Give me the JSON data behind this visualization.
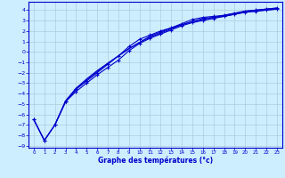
{
  "xlabel": "Graphe des températures (°c)",
  "bg_color": "#cceeff",
  "line_color": "#0000cc",
  "grid_color": "#aaccdd",
  "xlim": [
    -0.5,
    23.5
  ],
  "ylim": [
    -9.2,
    4.8
  ],
  "xticks": [
    0,
    1,
    2,
    3,
    4,
    5,
    6,
    7,
    8,
    9,
    10,
    11,
    12,
    13,
    14,
    15,
    16,
    17,
    18,
    19,
    20,
    21,
    22,
    23
  ],
  "yticks": [
    4,
    3,
    2,
    1,
    0,
    -1,
    -2,
    -3,
    -4,
    -5,
    -6,
    -7,
    -8,
    -9
  ],
  "curve1_x": [
    0,
    1,
    2,
    3,
    4,
    5,
    6,
    7,
    8,
    9,
    10,
    11,
    12,
    13,
    14,
    15,
    16,
    17,
    18,
    19,
    20,
    21,
    22,
    23
  ],
  "curve1_y": [
    -6.5,
    -8.5,
    -7.0,
    -4.8,
    -3.8,
    -3.0,
    -2.2,
    -1.5,
    -0.8,
    0.1,
    0.8,
    1.3,
    1.7,
    2.1,
    2.5,
    2.8,
    3.0,
    3.2,
    3.4,
    3.6,
    3.8,
    3.9,
    4.0,
    4.1
  ],
  "curve2_x": [
    0,
    1,
    2,
    3,
    4,
    5,
    6,
    7,
    8,
    9,
    10,
    11,
    12,
    13,
    14,
    15,
    16,
    17,
    18,
    19,
    20,
    21,
    22,
    23
  ],
  "curve2_y": [
    -6.5,
    -8.5,
    -7.0,
    -4.8,
    -3.6,
    -2.8,
    -2.0,
    -1.2,
    -0.4,
    0.5,
    1.2,
    1.6,
    2.0,
    2.3,
    2.7,
    3.1,
    3.3,
    3.4,
    3.5,
    3.7,
    3.9,
    4.0,
    4.1,
    4.2
  ],
  "curve3_x": [
    0,
    1,
    2,
    3,
    4,
    5,
    6,
    7,
    8,
    9,
    10,
    11,
    12,
    13,
    14,
    15,
    16,
    17,
    18,
    19,
    20,
    21,
    22,
    23
  ],
  "curve3_y": [
    -6.5,
    -8.5,
    -7.0,
    -4.7,
    -3.5,
    -2.7,
    -1.9,
    -1.1,
    -0.4,
    0.3,
    0.9,
    1.4,
    1.8,
    2.2,
    2.6,
    2.9,
    3.1,
    3.3,
    3.5,
    3.7,
    3.9,
    4.0,
    4.1,
    4.2
  ],
  "curve4_x": [
    2,
    3,
    4,
    5,
    6,
    7,
    8,
    9,
    10,
    11,
    12,
    13,
    14,
    15,
    16,
    17,
    18,
    19,
    20,
    21,
    22,
    23
  ],
  "curve4_y": [
    -7.0,
    -4.8,
    -3.5,
    -2.6,
    -1.8,
    -1.1,
    -0.4,
    0.3,
    0.9,
    1.5,
    1.9,
    2.3,
    2.6,
    2.9,
    3.2,
    3.3,
    3.4,
    3.6,
    3.8,
    3.9,
    4.0,
    4.1
  ]
}
